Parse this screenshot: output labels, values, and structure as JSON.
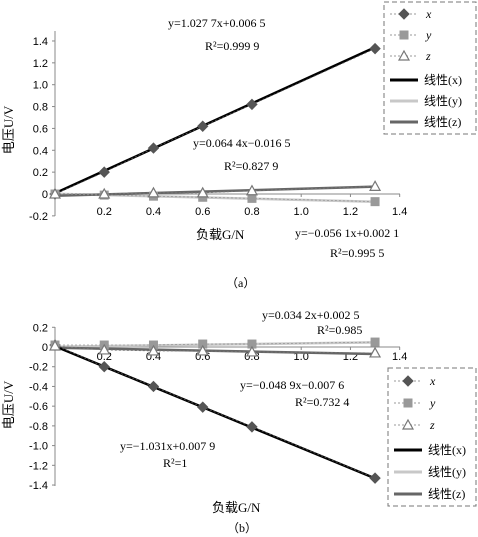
{
  "chart_data": [
    {
      "type": "line",
      "caption": "（a）",
      "xlabel": "负载G/N",
      "ylabel": "电压U/V",
      "ylim": [
        -0.2,
        1.4
      ],
      "xlim": [
        0,
        1.4
      ],
      "yticks": [
        "1.4",
        "1.2",
        "1.0",
        "0.8",
        "0.6",
        "0.4",
        "0.2",
        "0",
        "-0.2"
      ],
      "xticks": [
        "0.2",
        "0.4",
        "0.6",
        "0.8",
        "1.0",
        "1.2",
        "1.4"
      ],
      "series": [
        {
          "name": "x",
          "marker": "diamond",
          "color": "#555555",
          "x": [
            0,
            0.2,
            0.4,
            0.6,
            0.8,
            1.3
          ],
          "values": [
            0,
            0.2,
            0.42,
            0.62,
            0.82,
            1.33
          ]
        },
        {
          "name": "y",
          "marker": "square",
          "color": "#999999",
          "x": [
            0,
            0.2,
            0.4,
            0.6,
            0.8,
            1.3
          ],
          "values": [
            0,
            -0.01,
            -0.02,
            -0.03,
            -0.04,
            -0.07
          ]
        },
        {
          "name": "z",
          "marker": "triangle",
          "color": "#777777",
          "x": [
            0,
            0.2,
            0.4,
            0.6,
            0.8,
            1.3
          ],
          "values": [
            0,
            0.0,
            0.01,
            0.01,
            0.03,
            0.07
          ]
        }
      ],
      "trendlines": [
        {
          "name": "线性(x)",
          "color": "#000000",
          "width": 2.5,
          "slope": 1.0277,
          "intercept": 0.0065
        },
        {
          "name": "线性(y)",
          "color": "#c8c8c8",
          "width": 2.5,
          "slope": -0.0561,
          "intercept": 0.0021
        },
        {
          "name": "线性(z)",
          "color": "#666666",
          "width": 2.5,
          "slope": 0.0644,
          "intercept": -0.0165
        }
      ],
      "annotations": [
        {
          "eq": "y=1.027 7x+0.006 5",
          "r2": "R²=0.999 9"
        },
        {
          "eq": "y=0.064 4x−0.016 5",
          "r2": "R²=0.827 9"
        },
        {
          "eq": "y=−0.056 1x+0.002 1",
          "r2": "R²=0.995 5"
        }
      ],
      "legend": [
        "x",
        "y",
        "z",
        "线性(x)",
        "线性(y)",
        "线性(z)"
      ],
      "legend_position": "top-right"
    },
    {
      "type": "line",
      "caption": "（b）",
      "xlabel": "负载G/N",
      "ylabel": "电压U/V",
      "ylim": [
        -1.4,
        0.2
      ],
      "xlim": [
        0,
        1.4
      ],
      "yticks": [
        "0.2",
        "0",
        "-0.2",
        "-0.4",
        "-0.6",
        "-0.8",
        "-1.0",
        "-1.2",
        "-1.4"
      ],
      "xticks": [
        "0.2",
        "0.4",
        "0.6",
        "0.8",
        "1.0",
        "1.2",
        "1.4"
      ],
      "series": [
        {
          "name": "x",
          "marker": "diamond",
          "color": "#555555",
          "x": [
            0,
            0.2,
            0.4,
            0.6,
            0.8,
            1.3
          ],
          "values": [
            0.02,
            -0.2,
            -0.4,
            -0.61,
            -0.81,
            -1.33
          ]
        },
        {
          "name": "y",
          "marker": "square",
          "color": "#999999",
          "x": [
            0,
            0.2,
            0.4,
            0.6,
            0.8,
            1.3
          ],
          "values": [
            0.02,
            0.02,
            0.02,
            0.03,
            0.03,
            0.05
          ]
        },
        {
          "name": "z",
          "marker": "triangle",
          "color": "#777777",
          "x": [
            0,
            0.2,
            0.4,
            0.6,
            0.8,
            1.3
          ],
          "values": [
            0.01,
            -0.03,
            -0.04,
            -0.04,
            -0.05,
            -0.06
          ]
        }
      ],
      "trendlines": [
        {
          "name": "线性(x)",
          "color": "#000000",
          "width": 2.5,
          "slope": -1.031,
          "intercept": 0.0079
        },
        {
          "name": "线性(y)",
          "color": "#c8c8c8",
          "width": 2.5,
          "slope": 0.0342,
          "intercept": 0.0025
        },
        {
          "name": "线性(z)",
          "color": "#666666",
          "width": 2.5,
          "slope": -0.0489,
          "intercept": -0.0076
        }
      ],
      "annotations": [
        {
          "eq": "y=0.034 2x+0.002 5",
          "r2": "R²=0.985"
        },
        {
          "eq": "y=−0.048 9x−0.007 6",
          "r2": "R²=0.732 4"
        },
        {
          "eq": "y=−1.031x+0.007 9",
          "r2": "R²=1"
        }
      ],
      "legend": [
        "x",
        "y",
        "z",
        "线性(x)",
        "线性(y)",
        "线性(z)"
      ],
      "legend_position": "right"
    }
  ]
}
